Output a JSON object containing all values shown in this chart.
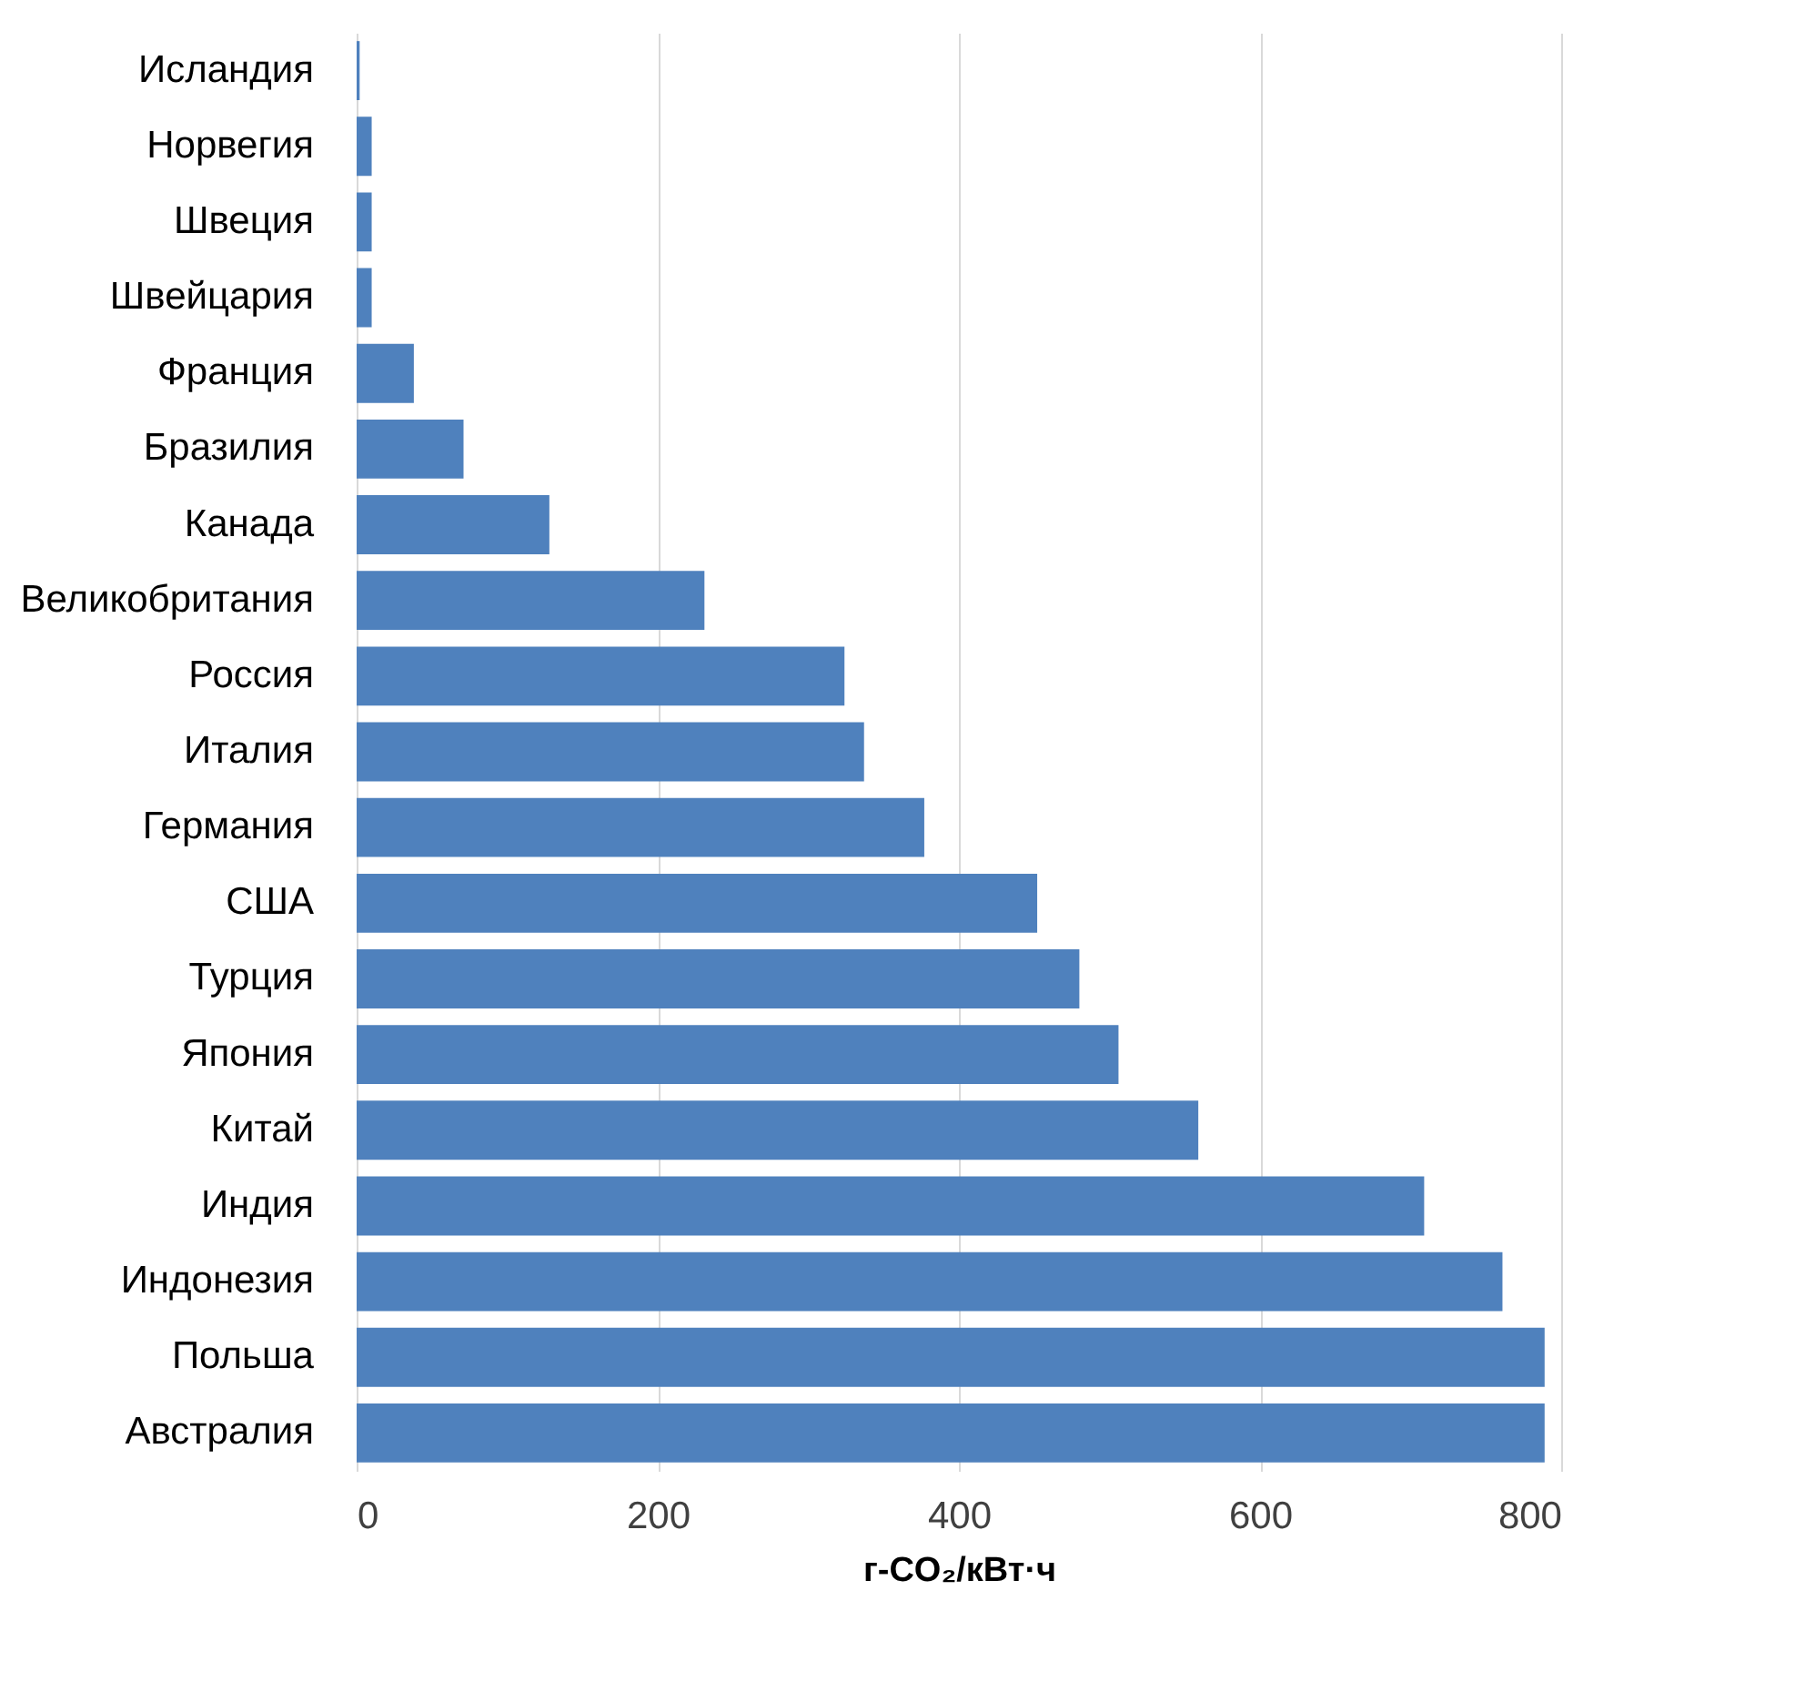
{
  "chart_data": {
    "type": "bar",
    "orientation": "horizontal",
    "xlabel": "г-CO₂/кВт·ч",
    "categories": [
      "Исландия",
      "Норвегия",
      "Швеция",
      "Швейцария",
      "Франция",
      "Бразилия",
      "Канада",
      "Великобритания",
      "Россия",
      "Италия",
      "Германия",
      "США",
      "Турция",
      "Япония",
      "Китай",
      "Индия",
      "Индонезия",
      "Польша",
      "Австралия"
    ],
    "values": [
      2,
      10,
      10,
      10,
      38,
      71,
      128,
      231,
      324,
      337,
      377,
      452,
      480,
      506,
      559,
      709,
      761,
      789,
      789
    ],
    "color": "#4f81bd",
    "xlim": [
      0,
      800
    ],
    "xticks": [
      0,
      200,
      400,
      600,
      800
    ],
    "grid": "x"
  }
}
